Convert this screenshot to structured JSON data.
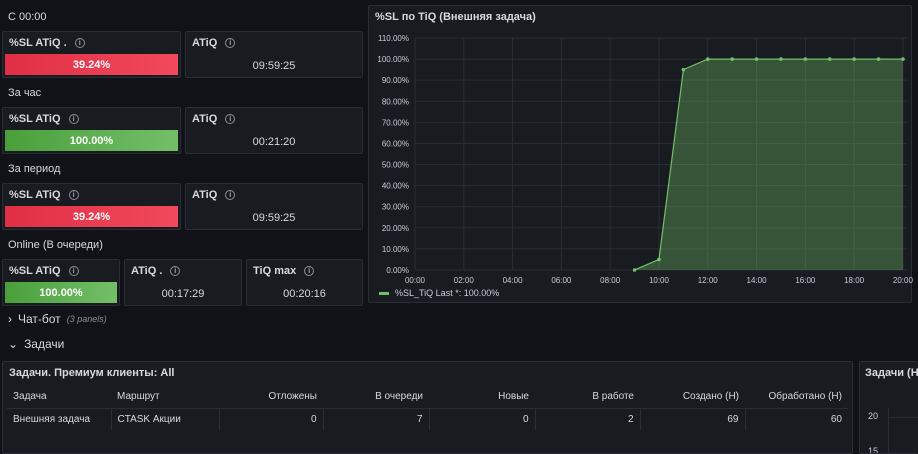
{
  "sections": {
    "since_midnight": "С 00:00",
    "per_hour": "За час",
    "per_period": "За период",
    "online": "Online (В очереди)"
  },
  "stats": {
    "sl_atiq_label": "%SL ATiQ .",
    "sl_atiq_label_plain": "%SL ATiQ",
    "atiq_label": "ATiQ",
    "atiq_label_dot": "ATiQ .",
    "tiq_max_label": "TiQ max",
    "since_midnight": {
      "sl": "39.24%",
      "atiq": "09:59:25"
    },
    "per_hour": {
      "sl": "100.00%",
      "atiq": "00:21:20"
    },
    "per_period": {
      "sl": "39.24%",
      "atiq": "09:59:25"
    },
    "online": {
      "sl": "100.00%",
      "atiq": "00:17:29",
      "tiq_max": "00:20:16"
    }
  },
  "chart_panel": {
    "title": "%SL по TiQ (Внешняя задача)",
    "legend_text": "%SL_TiQ  Last *: 100.00%"
  },
  "chart_data": {
    "type": "area",
    "series": [
      {
        "name": "%SL_TiQ",
        "x": [
          "09:00",
          "10:00",
          "11:00",
          "12:00",
          "13:00",
          "14:00",
          "15:00",
          "16:00",
          "17:00",
          "18:00",
          "19:00",
          "20:00"
        ],
        "values": [
          0,
          5,
          95,
          100,
          100,
          100,
          100,
          100,
          100,
          100,
          100,
          100
        ]
      }
    ],
    "x_ticks": [
      "00:00",
      "02:00",
      "04:00",
      "06:00",
      "08:00",
      "10:00",
      "12:00",
      "14:00",
      "16:00",
      "18:00",
      "20:00"
    ],
    "y_ticks": [
      "0.00%",
      "10.00%",
      "20.00%",
      "30.00%",
      "40.00%",
      "50.00%",
      "60.00%",
      "70.00%",
      "80.00%",
      "90.00%",
      "100.00%",
      "110.00%"
    ],
    "ylim": [
      0,
      110
    ],
    "xlim": [
      "00:00",
      "20:10"
    ],
    "grid": true,
    "legend": "bottom-left",
    "color": "#73bf69"
  },
  "rows": {
    "chatbot": {
      "label": "Чат-бот",
      "count": "(3 panels)"
    },
    "tasks": {
      "label": "Задачи"
    }
  },
  "table_panel": {
    "title": "Задачи. Премиум клиенты: All",
    "columns": [
      "Задача",
      "Маршрут",
      "Отложены",
      "В очереди",
      "Новые",
      "В работе",
      "Создано (Н)",
      "Обработано (Н)"
    ],
    "rows": [
      [
        "Внешняя задача",
        "CTASK Акции",
        "0",
        "7",
        "0",
        "2",
        "69",
        "60"
      ]
    ]
  },
  "right_panel": {
    "title": "Задачи (Н",
    "y_ticks": [
      "20",
      "15"
    ]
  },
  "colors": {
    "background": "#111217",
    "panel": "#181b1f",
    "red": "#f2495c",
    "green": "#73bf69"
  }
}
